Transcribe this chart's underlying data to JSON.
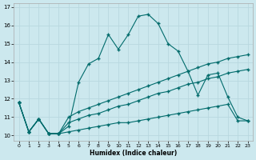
{
  "xlabel": "Humidex (Indice chaleur)",
  "bg_color": "#cce8ee",
  "grid_color": "#b8d8df",
  "line_color": "#006b6b",
  "y_main": [
    11.8,
    10.2,
    10.9,
    10.1,
    10.1,
    10.5,
    12.9,
    13.9,
    14.2,
    15.5,
    14.7,
    15.5,
    16.5,
    16.6,
    16.1,
    15.0,
    14.6,
    13.5,
    12.2,
    13.3,
    13.4,
    12.1,
    11.0,
    10.8
  ],
  "y_line2": [
    11.8,
    10.2,
    10.9,
    10.1,
    10.1,
    11.0,
    11.3,
    11.5,
    11.7,
    11.9,
    12.1,
    12.3,
    12.5,
    12.7,
    12.9,
    13.1,
    13.3,
    13.5,
    13.7,
    13.9,
    14.0,
    14.2,
    14.3,
    14.4
  ],
  "y_line3": [
    11.8,
    10.2,
    10.9,
    10.1,
    10.1,
    10.7,
    10.9,
    11.1,
    11.2,
    11.4,
    11.6,
    11.7,
    11.9,
    12.1,
    12.3,
    12.4,
    12.6,
    12.8,
    12.9,
    13.1,
    13.2,
    13.4,
    13.5,
    13.6
  ],
  "y_line4": [
    11.8,
    10.2,
    10.9,
    10.1,
    10.1,
    10.2,
    10.3,
    10.4,
    10.5,
    10.6,
    10.7,
    10.7,
    10.8,
    10.9,
    11.0,
    11.1,
    11.2,
    11.3,
    11.4,
    11.5,
    11.6,
    11.7,
    10.8,
    10.8
  ],
  "ylim": [
    9.7,
    17.2
  ],
  "xlim": [
    -0.5,
    23.5
  ],
  "yticks": [
    10,
    11,
    12,
    13,
    14,
    15,
    16,
    17
  ],
  "xticks": [
    0,
    1,
    2,
    3,
    4,
    5,
    6,
    7,
    8,
    9,
    10,
    11,
    12,
    13,
    14,
    15,
    16,
    17,
    18,
    19,
    20,
    21,
    22,
    23
  ]
}
